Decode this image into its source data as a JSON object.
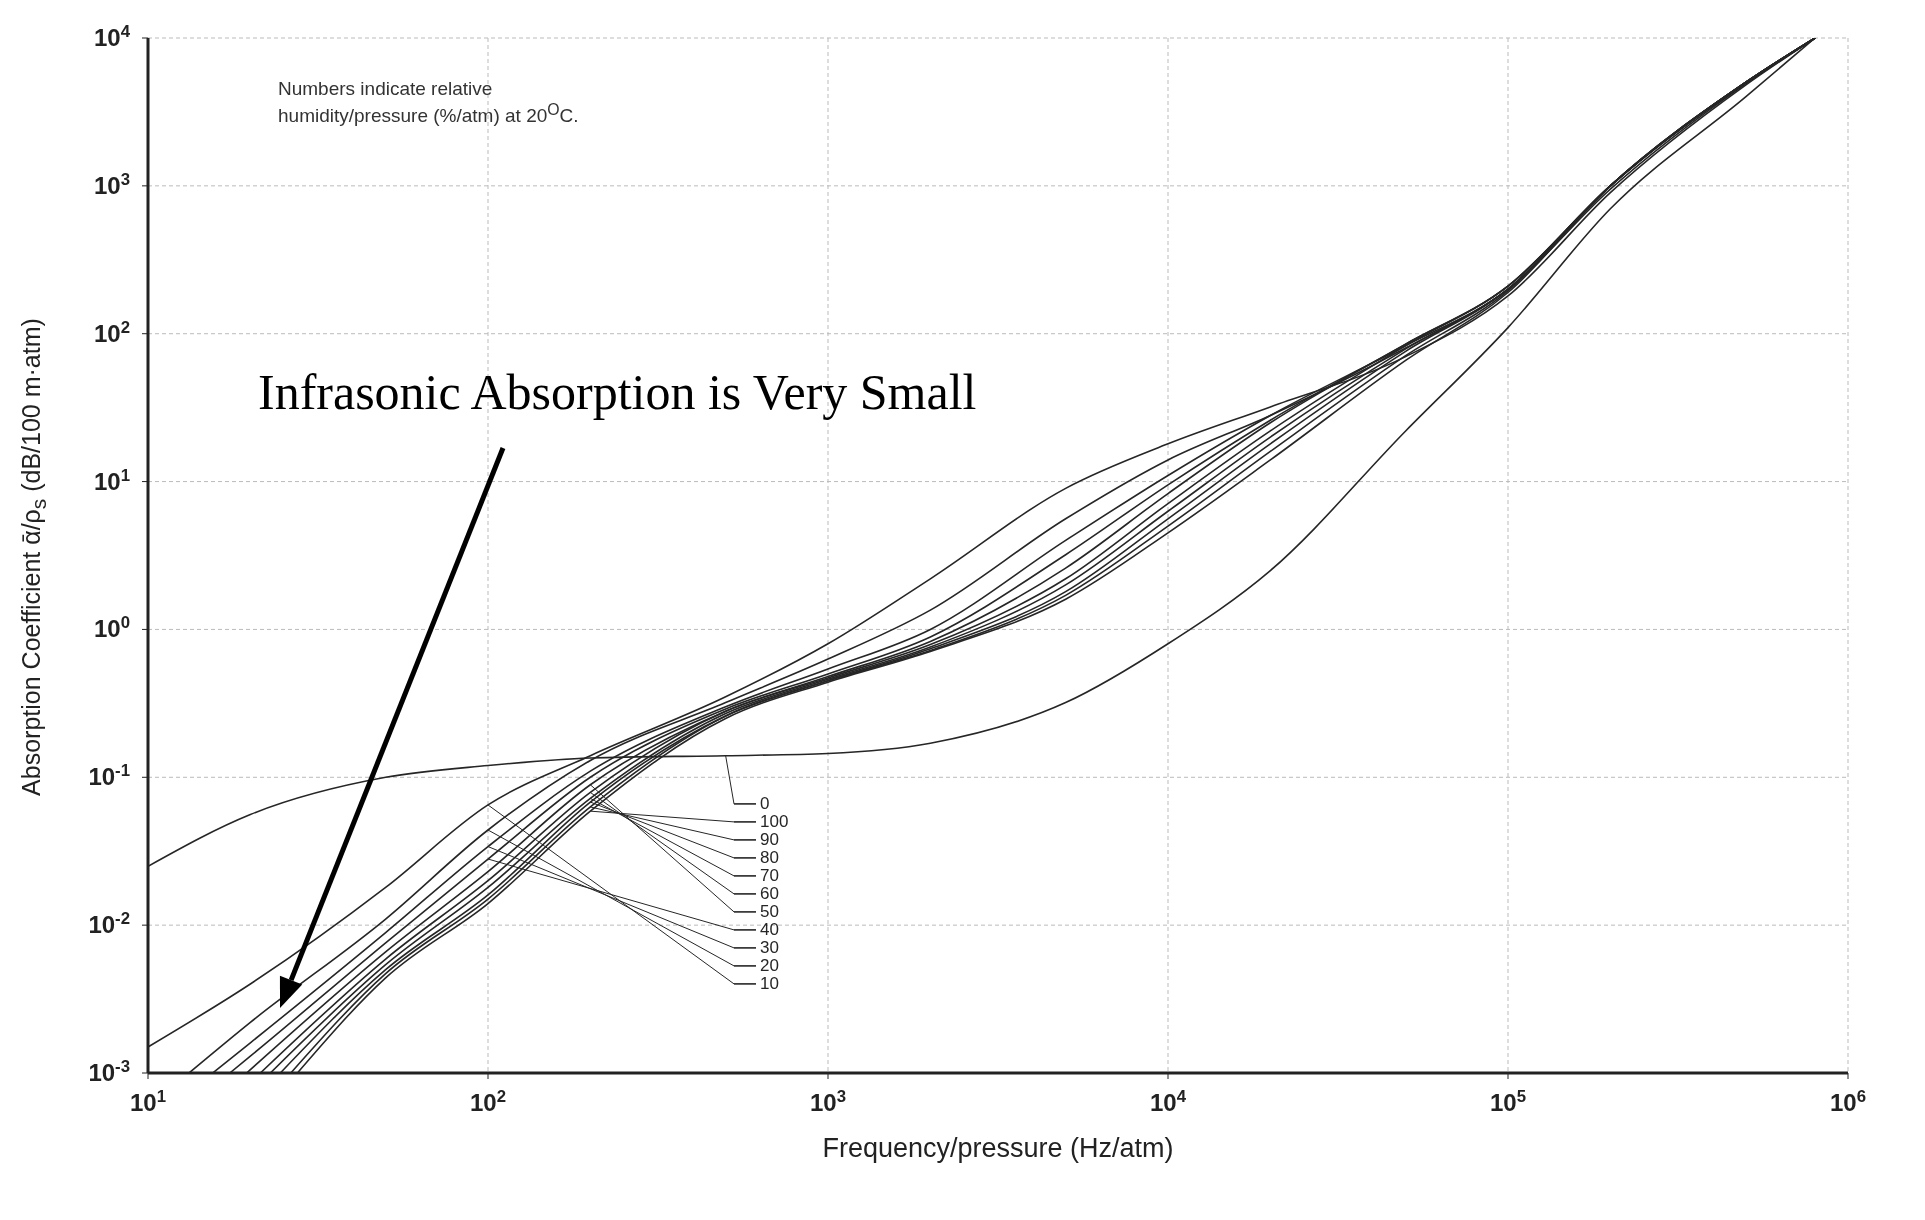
{
  "chart_data": {
    "type": "line",
    "xlabel": "Frequency/pressure (Hz/atm)",
    "ylabel": "Absorption Coefficient ᾱ/ρ$_{s}$ (dB/100 m·atm)",
    "log": "xy",
    "grid": true,
    "legend": "bottom",
    "marker": "none",
    "line_style": "solid",
    "xlim": [
      10,
      1000000
    ],
    "ylim": [
      0.001,
      10000
    ],
    "xticks": [
      {
        "value": 10,
        "label": "10$^{1}$"
      },
      {
        "value": 100,
        "label": "10$^{2}$"
      },
      {
        "value": 1000,
        "label": "10$^{3}$"
      },
      {
        "value": 10000,
        "label": "10$^{4}$"
      },
      {
        "value": 100000,
        "label": "10$^{5}$"
      },
      {
        "value": 1000000,
        "label": "10$^{6}$"
      }
    ],
    "yticks": [
      {
        "value": 0.001,
        "label": "10$^{-3}$"
      },
      {
        "value": 0.01,
        "label": "10$^{-2}$"
      },
      {
        "value": 0.1,
        "label": "10$^{-1}$"
      },
      {
        "value": 1,
        "label": "10$^{0}$"
      },
      {
        "value": 10,
        "label": "10$^{1}$"
      },
      {
        "value": 100,
        "label": "10$^{2}$"
      },
      {
        "value": 1000,
        "label": "10$^{3}$"
      },
      {
        "value": 10000,
        "label": "10$^{4}$"
      }
    ],
    "annotations": [
      "Numbers indicate relative humidity/pressure (%/atm) at 20$^{O}$C.",
      "Infrasonic Absorption is Very Small"
    ],
    "x": [
      10,
      20,
      50,
      100,
      200,
      500,
      1000,
      2000,
      5000,
      10000,
      20000,
      50000,
      100000,
      200000,
      500000,
      800000
    ],
    "series": [
      {
        "name": "0",
        "color": "#262626",
        "values": [
          0.025,
          0.056,
          0.1,
          0.12,
          0.135,
          0.14,
          0.145,
          0.17,
          0.32,
          0.8,
          2.5,
          22,
          110,
          700,
          4000,
          10000
        ]
      },
      {
        "name": "10",
        "color": "#262626",
        "values": [
          0.0015,
          0.004,
          0.018,
          0.065,
          0.14,
          0.35,
          0.8,
          2.2,
          9,
          18,
          32,
          70,
          180,
          900,
          4800,
          10000
        ]
      },
      {
        "name": "20",
        "color": "#262626",
        "x": [
          13.2,
          20,
          50,
          100,
          200,
          500,
          1000,
          2000,
          5000,
          10000,
          20000,
          50000,
          100000,
          200000,
          500000,
          800000
        ],
        "values": [
          0.001,
          0.0022,
          0.011,
          0.044,
          0.13,
          0.32,
          0.63,
          1.35,
          5.6,
          14,
          28,
          80,
          200,
          950,
          4900,
          10000
        ]
      },
      {
        "name": "30",
        "color": "#262626",
        "x": [
          15.5,
          20,
          50,
          100,
          200,
          500,
          1000,
          2000,
          5000,
          10000,
          20000,
          50000,
          100000,
          200000,
          500000,
          800000
        ],
        "values": [
          0.001,
          0.0016,
          0.0089,
          0.034,
          0.11,
          0.3,
          0.54,
          1.0,
          4.0,
          11,
          28,
          83,
          200,
          1000,
          5000,
          10000
        ]
      },
      {
        "name": "40",
        "color": "#262626",
        "x": [
          17.4,
          20,
          50,
          100,
          200,
          500,
          1000,
          2000,
          5000,
          10000,
          20000,
          50000,
          100000,
          200000,
          500000,
          800000
        ],
        "values": [
          0.001,
          0.0013,
          0.0076,
          0.028,
          0.1,
          0.29,
          0.5,
          0.89,
          3.2,
          9.5,
          26,
          85,
          210,
          1000,
          5000,
          10000
        ]
      },
      {
        "name": "50",
        "color": "#262626",
        "x": [
          19.5,
          50,
          100,
          200,
          500,
          1000,
          2000,
          5000,
          10000,
          20000,
          50000,
          100000,
          200000,
          500000,
          800000
        ],
        "values": [
          0.001,
          0.0066,
          0.023,
          0.089,
          0.28,
          0.48,
          0.83,
          2.6,
          8.3,
          25,
          85,
          210,
          1000,
          5000,
          10000
        ]
      },
      {
        "name": "60",
        "color": "#262626",
        "x": [
          21.4,
          50,
          100,
          200,
          500,
          1000,
          2000,
          5000,
          10000,
          20000,
          50000,
          100000,
          200000,
          500000,
          800000
        ],
        "values": [
          0.001,
          0.0059,
          0.02,
          0.079,
          0.28,
          0.47,
          0.79,
          2.2,
          7.1,
          22,
          83,
          210,
          1000,
          5000,
          10000
        ]
      },
      {
        "name": "70",
        "color": "#262626",
        "x": [
          22.9,
          50,
          100,
          200,
          500,
          1000,
          2000,
          5000,
          10000,
          20000,
          50000,
          100000,
          200000,
          500000,
          800000
        ],
        "values": [
          0.001,
          0.0054,
          0.018,
          0.072,
          0.27,
          0.46,
          0.76,
          2.0,
          6.3,
          20,
          79,
          200,
          1000,
          5000,
          10000
        ]
      },
      {
        "name": "80",
        "color": "#262626",
        "x": [
          24.5,
          50,
          100,
          200,
          500,
          1000,
          2000,
          5000,
          10000,
          20000,
          50000,
          100000,
          200000,
          500000,
          800000
        ],
        "values": [
          0.001,
          0.005,
          0.016,
          0.068,
          0.26,
          0.45,
          0.74,
          1.8,
          5.6,
          18,
          76,
          200,
          1000,
          5000,
          10000
        ]
      },
      {
        "name": "90",
        "color": "#262626",
        "x": [
          26.3,
          50,
          100,
          200,
          500,
          1000,
          2000,
          5000,
          10000,
          20000,
          50000,
          100000,
          200000,
          500000,
          800000
        ],
        "values": [
          0.001,
          0.0047,
          0.015,
          0.063,
          0.26,
          0.45,
          0.72,
          1.7,
          5.0,
          16,
          71,
          195,
          1000,
          5000,
          10000
        ]
      },
      {
        "name": "100",
        "color": "#262626",
        "x": [
          27.5,
          50,
          100,
          200,
          500,
          1000,
          2000,
          5000,
          10000,
          20000,
          50000,
          100000,
          200000,
          500000,
          800000
        ],
        "values": [
          0.001,
          0.0044,
          0.014,
          0.059,
          0.25,
          0.44,
          0.71,
          1.6,
          4.5,
          14,
          66,
          190,
          1000,
          5000,
          10000
        ]
      }
    ]
  }
}
